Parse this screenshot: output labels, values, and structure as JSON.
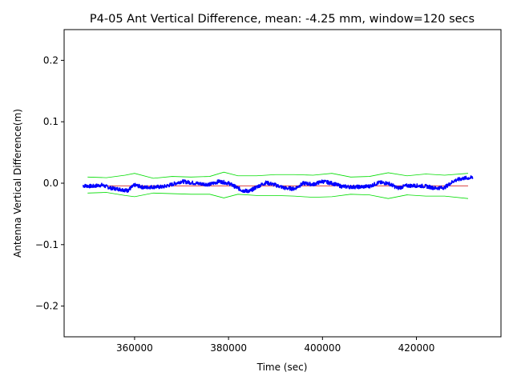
{
  "chart_data": {
    "type": "line",
    "title": "P4-05 Ant Vertical Difference, mean: -4.25 mm, window=120 secs",
    "xlabel": "Time (sec)",
    "ylabel": "Antenna Vertical Difference(m)",
    "xlim": [
      345000,
      438000
    ],
    "ylim": [
      -0.25,
      0.25
    ],
    "xticks": [
      {
        "value": 360000,
        "label": "360000"
      },
      {
        "value": 380000,
        "label": "380000"
      },
      {
        "value": 400000,
        "label": "400000"
      },
      {
        "value": 420000,
        "label": "420000"
      }
    ],
    "yticks": [
      {
        "value": 0.2,
        "label": "0.2"
      },
      {
        "value": 0.1,
        "label": "0.1"
      },
      {
        "value": 0.0,
        "label": "0.0"
      },
      {
        "value": -0.1,
        "label": "−0.1"
      },
      {
        "value": -0.2,
        "label": "−0.2"
      }
    ],
    "grid": false,
    "legend": "none",
    "series": [
      {
        "color": "#0000ff",
        "style": "noisy",
        "x": [
          349000,
          351000,
          353000,
          355000,
          357000,
          358500,
          360000,
          362000,
          364000,
          366000,
          368000,
          370000,
          372000,
          374000,
          376000,
          378000,
          380000,
          381500,
          383000,
          384500,
          386000,
          388000,
          390000,
          392000,
          394000,
          396000,
          398000,
          400000,
          402000,
          404000,
          406000,
          408000,
          410000,
          412000,
          414000,
          416000,
          418000,
          420000,
          422000,
          424000,
          426000,
          428000,
          430000,
          432000
        ],
        "y": [
          -0.004,
          -0.005,
          -0.003,
          -0.008,
          -0.01,
          -0.012,
          -0.003,
          -0.007,
          -0.006,
          -0.006,
          -0.002,
          0.003,
          0.001,
          -0.001,
          -0.002,
          0.003,
          0.0,
          -0.006,
          -0.012,
          -0.013,
          -0.006,
          0.001,
          -0.003,
          -0.008,
          -0.009,
          0.0,
          -0.002,
          0.003,
          0.0,
          -0.005,
          -0.006,
          -0.006,
          -0.005,
          0.001,
          0.0,
          -0.008,
          -0.004,
          -0.004,
          -0.005,
          -0.008,
          -0.007,
          0.004,
          0.008,
          0.009
        ]
      },
      {
        "color": "#00dd00",
        "style": "thin",
        "x": [
          350000,
          354000,
          358000,
          360000,
          364000,
          368000,
          372000,
          376000,
          379000,
          382000,
          386000,
          390000,
          394000,
          398000,
          402000,
          406000,
          410000,
          414000,
          418000,
          422000,
          426000,
          431000
        ],
        "y": [
          0.01,
          0.009,
          0.013,
          0.016,
          0.008,
          0.011,
          0.01,
          0.011,
          0.018,
          0.012,
          0.012,
          0.014,
          0.014,
          0.013,
          0.016,
          0.01,
          0.011,
          0.017,
          0.012,
          0.015,
          0.013,
          0.016
        ]
      },
      {
        "color": "#00dd00",
        "style": "thin",
        "x": [
          350000,
          354000,
          358000,
          360000,
          364000,
          368000,
          372000,
          376000,
          379000,
          382000,
          386000,
          390000,
          394000,
          398000,
          402000,
          406000,
          410000,
          414000,
          418000,
          422000,
          426000,
          431000
        ],
        "y": [
          -0.016,
          -0.015,
          -0.02,
          -0.022,
          -0.016,
          -0.017,
          -0.018,
          -0.018,
          -0.024,
          -0.018,
          -0.02,
          -0.02,
          -0.021,
          -0.023,
          -0.022,
          -0.018,
          -0.019,
          -0.025,
          -0.019,
          -0.021,
          -0.021,
          -0.025
        ]
      },
      {
        "color": "#cc0000",
        "style": "thin",
        "x": [
          350000,
          431000
        ],
        "y": [
          -0.00425,
          -0.00425
        ]
      }
    ]
  }
}
